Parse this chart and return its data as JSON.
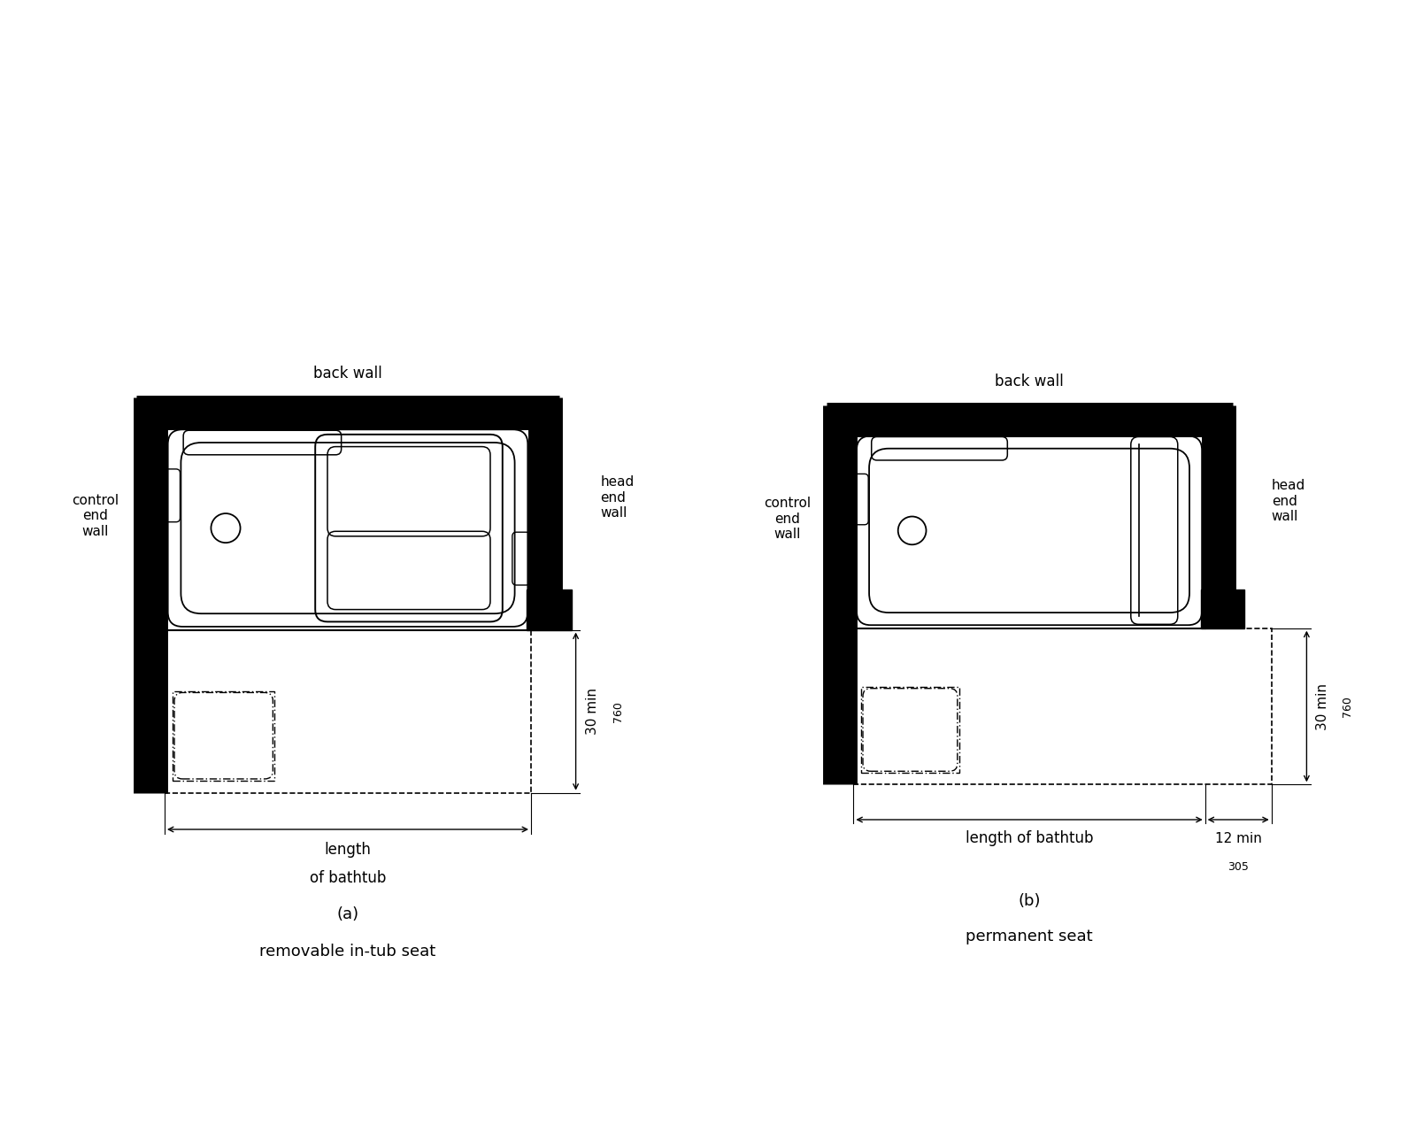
{
  "bg_color": "#ffffff",
  "line_color": "#000000",
  "wall_lw": 12,
  "tub_lw": 1.8,
  "dim_lw": 1.0,
  "fig_a": {
    "label": "(a)",
    "sublabel": "removable in-tub seat",
    "back_wall": "back wall",
    "control_end": "control\nend\nwall",
    "head_end": "head\nend\nwall"
  },
  "fig_b": {
    "label": "(b)",
    "sublabel": "permanent seat",
    "back_wall": "back wall",
    "control_end": "control\nend\nwall",
    "head_end": "head\nend\nwall"
  }
}
